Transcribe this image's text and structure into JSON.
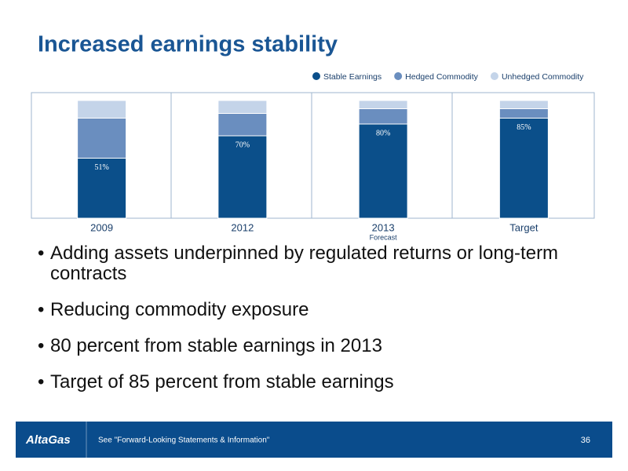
{
  "chart_data": {
    "type": "bar",
    "stacked": true,
    "title": "Increased earnings stability",
    "categories": [
      "2009",
      "2012",
      "2013",
      "Target"
    ],
    "annotations": [
      "Forecast"
    ],
    "ylim": [
      0,
      100
    ],
    "series": [
      {
        "name": "Stable Earnings",
        "color": "#0b4f8a",
        "values": [
          51,
          70,
          80,
          85
        ],
        "value_labels": [
          "51%",
          "70%",
          "80%",
          "85%"
        ]
      },
      {
        "name": "Hedged Commodity",
        "color": "#6a8ebf",
        "values": [
          34,
          19,
          13,
          8
        ]
      },
      {
        "name": "Unhedged Commodity",
        "color": "#c4d4e9",
        "values": [
          15,
          11,
          7,
          7
        ]
      }
    ]
  },
  "slide": {
    "bullets": [
      "Adding assets underpinned by regulated returns or long-term contracts",
      "Reducing commodity exposure",
      "80 percent from stable earnings in 2013",
      "Target of 85 percent from stable earnings"
    ],
    "footer": {
      "logo": "AltaGas",
      "note": "See \"Forward-Looking Statements & Information\"",
      "page": "36"
    }
  }
}
